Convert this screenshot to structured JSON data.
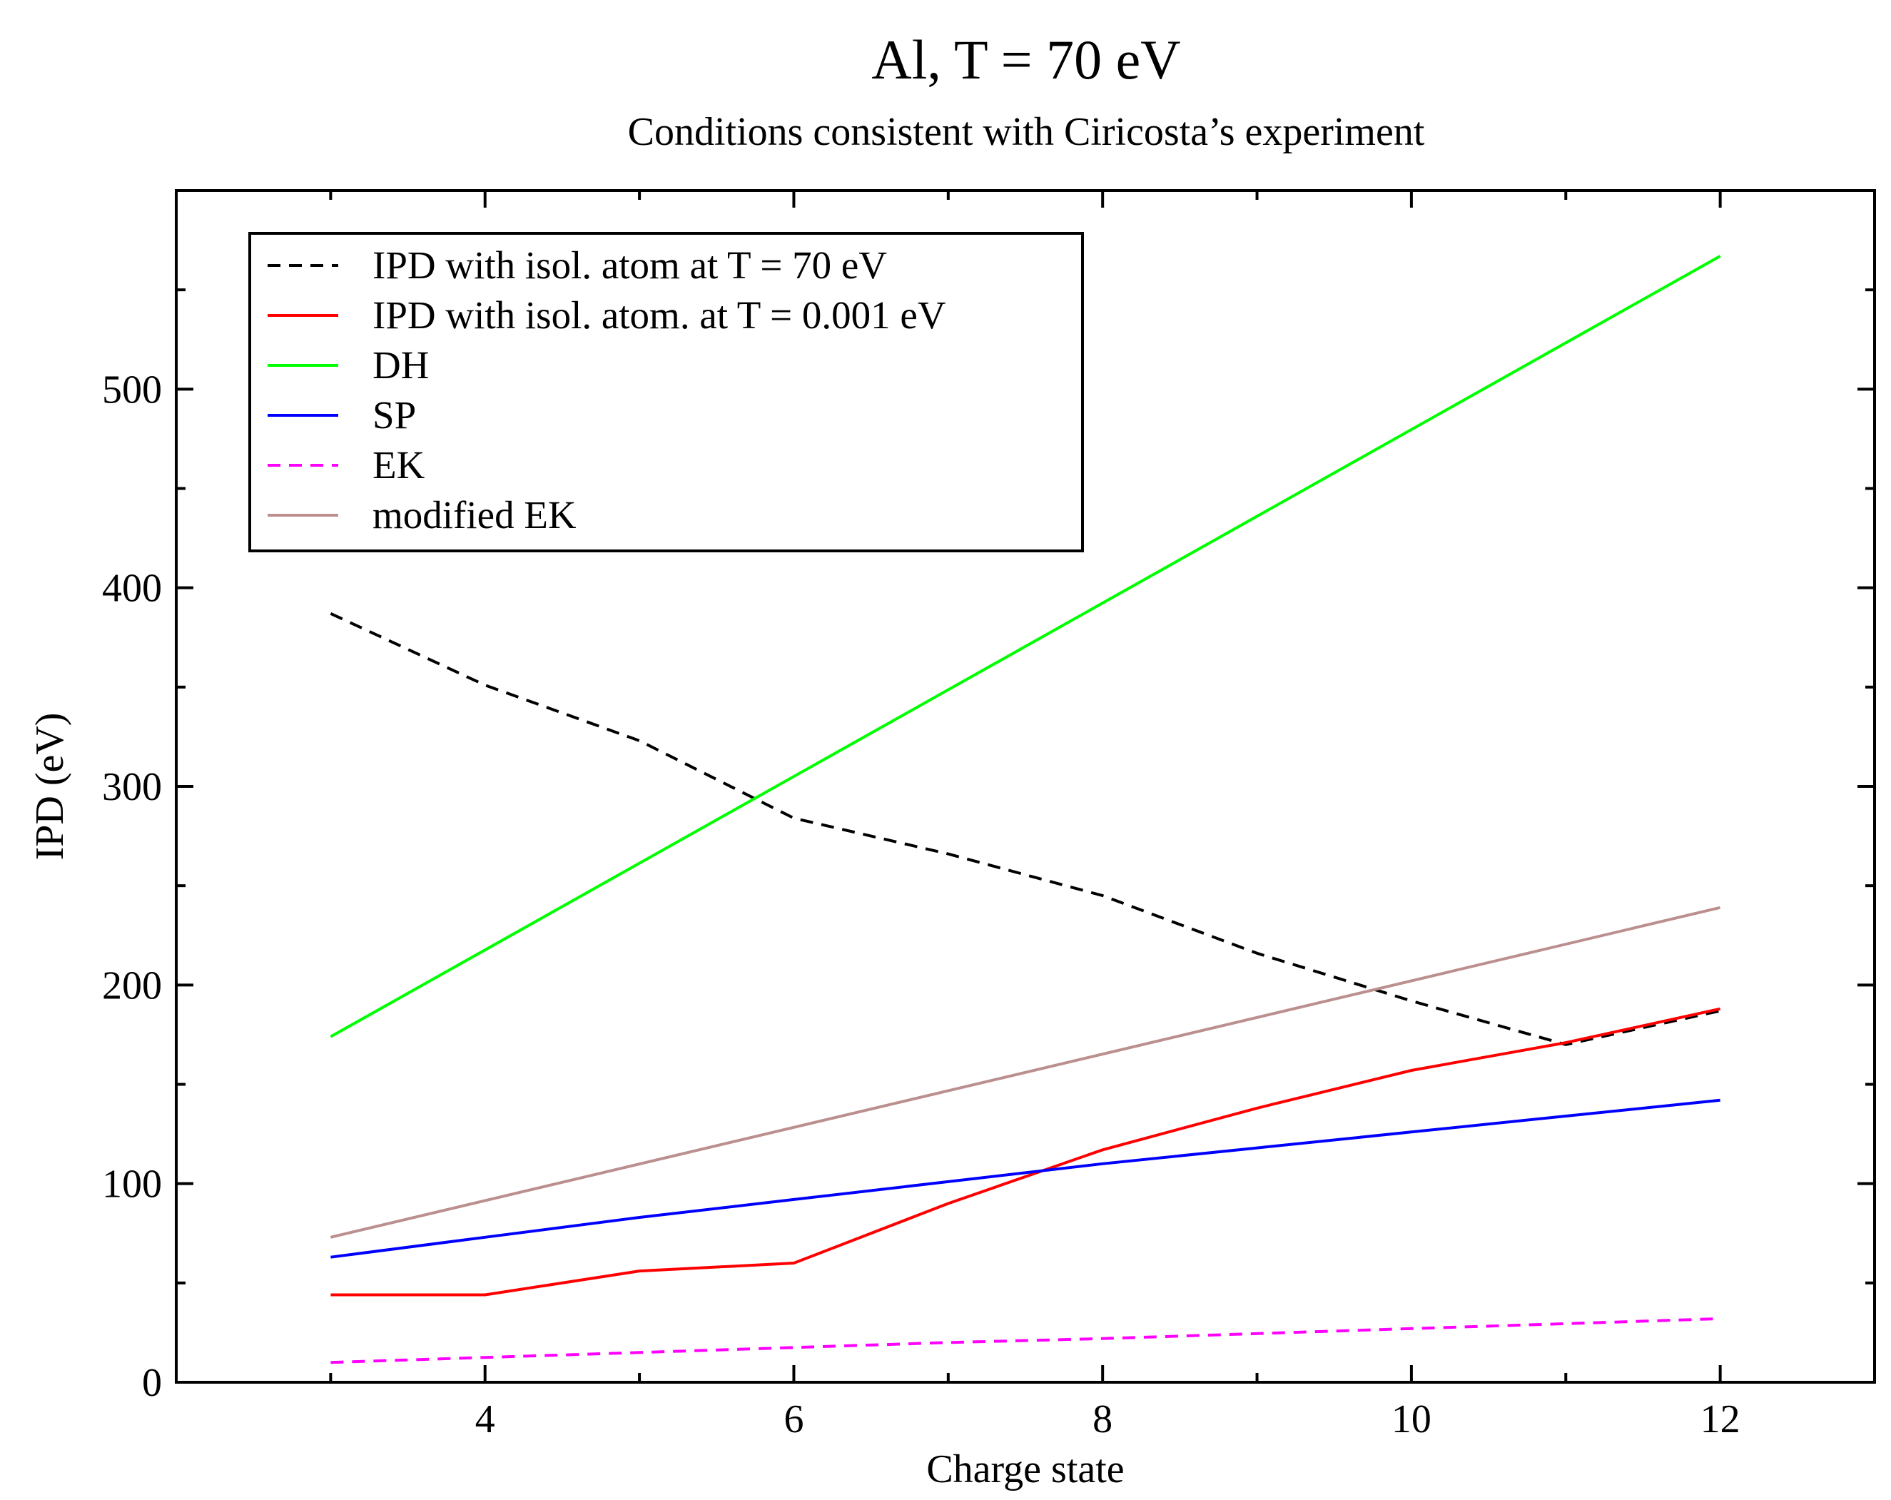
{
  "chart_data": {
    "type": "line",
    "title": "Al, T = 70 eV",
    "subtitle": "Conditions consistent with Ciricosta’s experiment",
    "xlabel": "Charge state",
    "ylabel": "IPD (eV)",
    "xlim": [
      2,
      13
    ],
    "ylim": [
      0,
      600
    ],
    "x_ticks": [
      4,
      6,
      8,
      10,
      12
    ],
    "y_ticks": [
      0,
      100,
      200,
      300,
      400,
      500
    ],
    "x_minor_ticks": [
      3,
      5,
      7,
      9,
      11
    ],
    "y_minor_ticks": [
      50,
      150,
      250,
      350,
      450,
      550
    ],
    "legend_position": "top-left",
    "series": [
      {
        "name": "IPD with isol. atom at T = 70 eV",
        "color": "#000000",
        "dashed": true,
        "x": [
          3,
          4,
          5,
          6,
          7,
          8,
          9,
          10,
          11,
          12
        ],
        "y": [
          387,
          351,
          323,
          284,
          266,
          245,
          216,
          192,
          170,
          187
        ]
      },
      {
        "name": "IPD with isol. atom. at T = 0.001 eV",
        "color": "#ff0000",
        "dashed": false,
        "x": [
          3,
          4,
          5,
          6,
          7,
          8,
          9,
          10,
          11,
          12
        ],
        "y": [
          44,
          44,
          56,
          60,
          90,
          117,
          138,
          157,
          171,
          188
        ]
      },
      {
        "name": "DH",
        "color": "#00ff00",
        "dashed": false,
        "x": [
          3,
          12
        ],
        "y": [
          174,
          567
        ]
      },
      {
        "name": "SP",
        "color": "#0000ff",
        "dashed": false,
        "x": [
          3,
          4,
          5,
          6,
          7,
          8,
          9,
          10,
          11,
          12
        ],
        "y": [
          63,
          73,
          83,
          92,
          101,
          110,
          118,
          126,
          134,
          142
        ]
      },
      {
        "name": "EK",
        "color": "#ff00ff",
        "dashed": true,
        "x": [
          3,
          4,
          5,
          6,
          7,
          8,
          9,
          10,
          11,
          12
        ],
        "y": [
          10,
          12.5,
          15,
          17.5,
          20,
          22,
          24.5,
          27,
          29.5,
          32
        ]
      },
      {
        "name": "modified EK",
        "color": "#bc8f8f",
        "dashed": false,
        "x": [
          3,
          12
        ],
        "y": [
          73,
          239
        ]
      }
    ]
  }
}
